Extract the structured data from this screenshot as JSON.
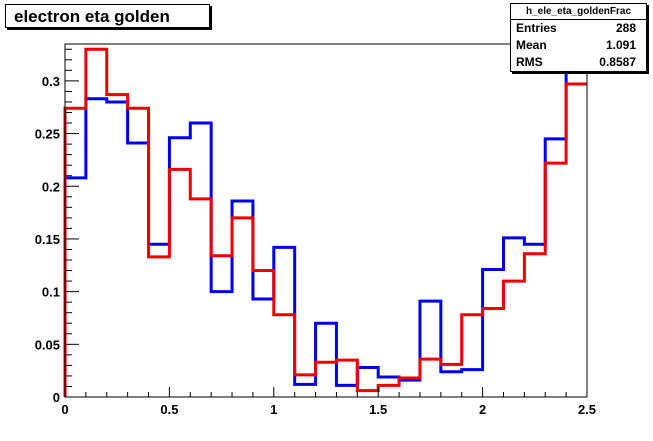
{
  "title": "electron eta golden",
  "stats": {
    "name": "h_ele_eta_goldenFrac",
    "rows": [
      {
        "label": "Entries",
        "value": "288"
      },
      {
        "label": "Mean",
        "value": "1.091"
      },
      {
        "label": "RMS",
        "value": "0.8587"
      }
    ]
  },
  "chart_data": {
    "type": "line",
    "title": "electron eta golden",
    "xlabel": "",
    "ylabel": "",
    "xlim": [
      0,
      2.5
    ],
    "ylim": [
      0,
      0.335
    ],
    "grid": false,
    "x_ticks": [
      0,
      0.5,
      1,
      1.5,
      2,
      2.5
    ],
    "x_tick_labels": [
      "0",
      "0.5",
      "1",
      "1.5",
      "2",
      "2.5"
    ],
    "y_ticks": [
      0,
      0.05,
      0.1,
      0.15,
      0.2,
      0.25,
      0.3
    ],
    "y_tick_labels": [
      "0",
      "0.05",
      "0.1",
      "0.15",
      "0.2",
      "0.25",
      "0.3"
    ],
    "bin_edges": [
      0,
      0.1,
      0.2,
      0.3,
      0.4,
      0.5,
      0.6,
      0.7,
      0.8,
      0.9,
      1.0,
      1.1,
      1.2,
      1.3,
      1.4,
      1.5,
      1.6,
      1.7,
      1.8,
      1.9,
      2.0,
      2.1,
      2.2,
      2.3,
      2.4,
      2.5
    ],
    "series": [
      {
        "color": "#0000ee",
        "values": [
          0.208,
          0.283,
          0.28,
          0.241,
          0.145,
          0.246,
          0.26,
          0.1,
          0.186,
          0.093,
          0.142,
          0.012,
          0.07,
          0.011,
          0.028,
          0.019,
          0.016,
          0.091,
          0.024,
          0.026,
          0.121,
          0.151,
          0.145,
          0.245,
          0.335
        ]
      },
      {
        "color": "#ee0000",
        "values": [
          0.274,
          0.33,
          0.287,
          0.274,
          0.133,
          0.216,
          0.188,
          0.134,
          0.17,
          0.12,
          0.078,
          0.021,
          0.033,
          0.035,
          0.006,
          0.011,
          0.018,
          0.036,
          0.031,
          0.078,
          0.084,
          0.11,
          0.136,
          0.222,
          0.297
        ]
      }
    ]
  }
}
